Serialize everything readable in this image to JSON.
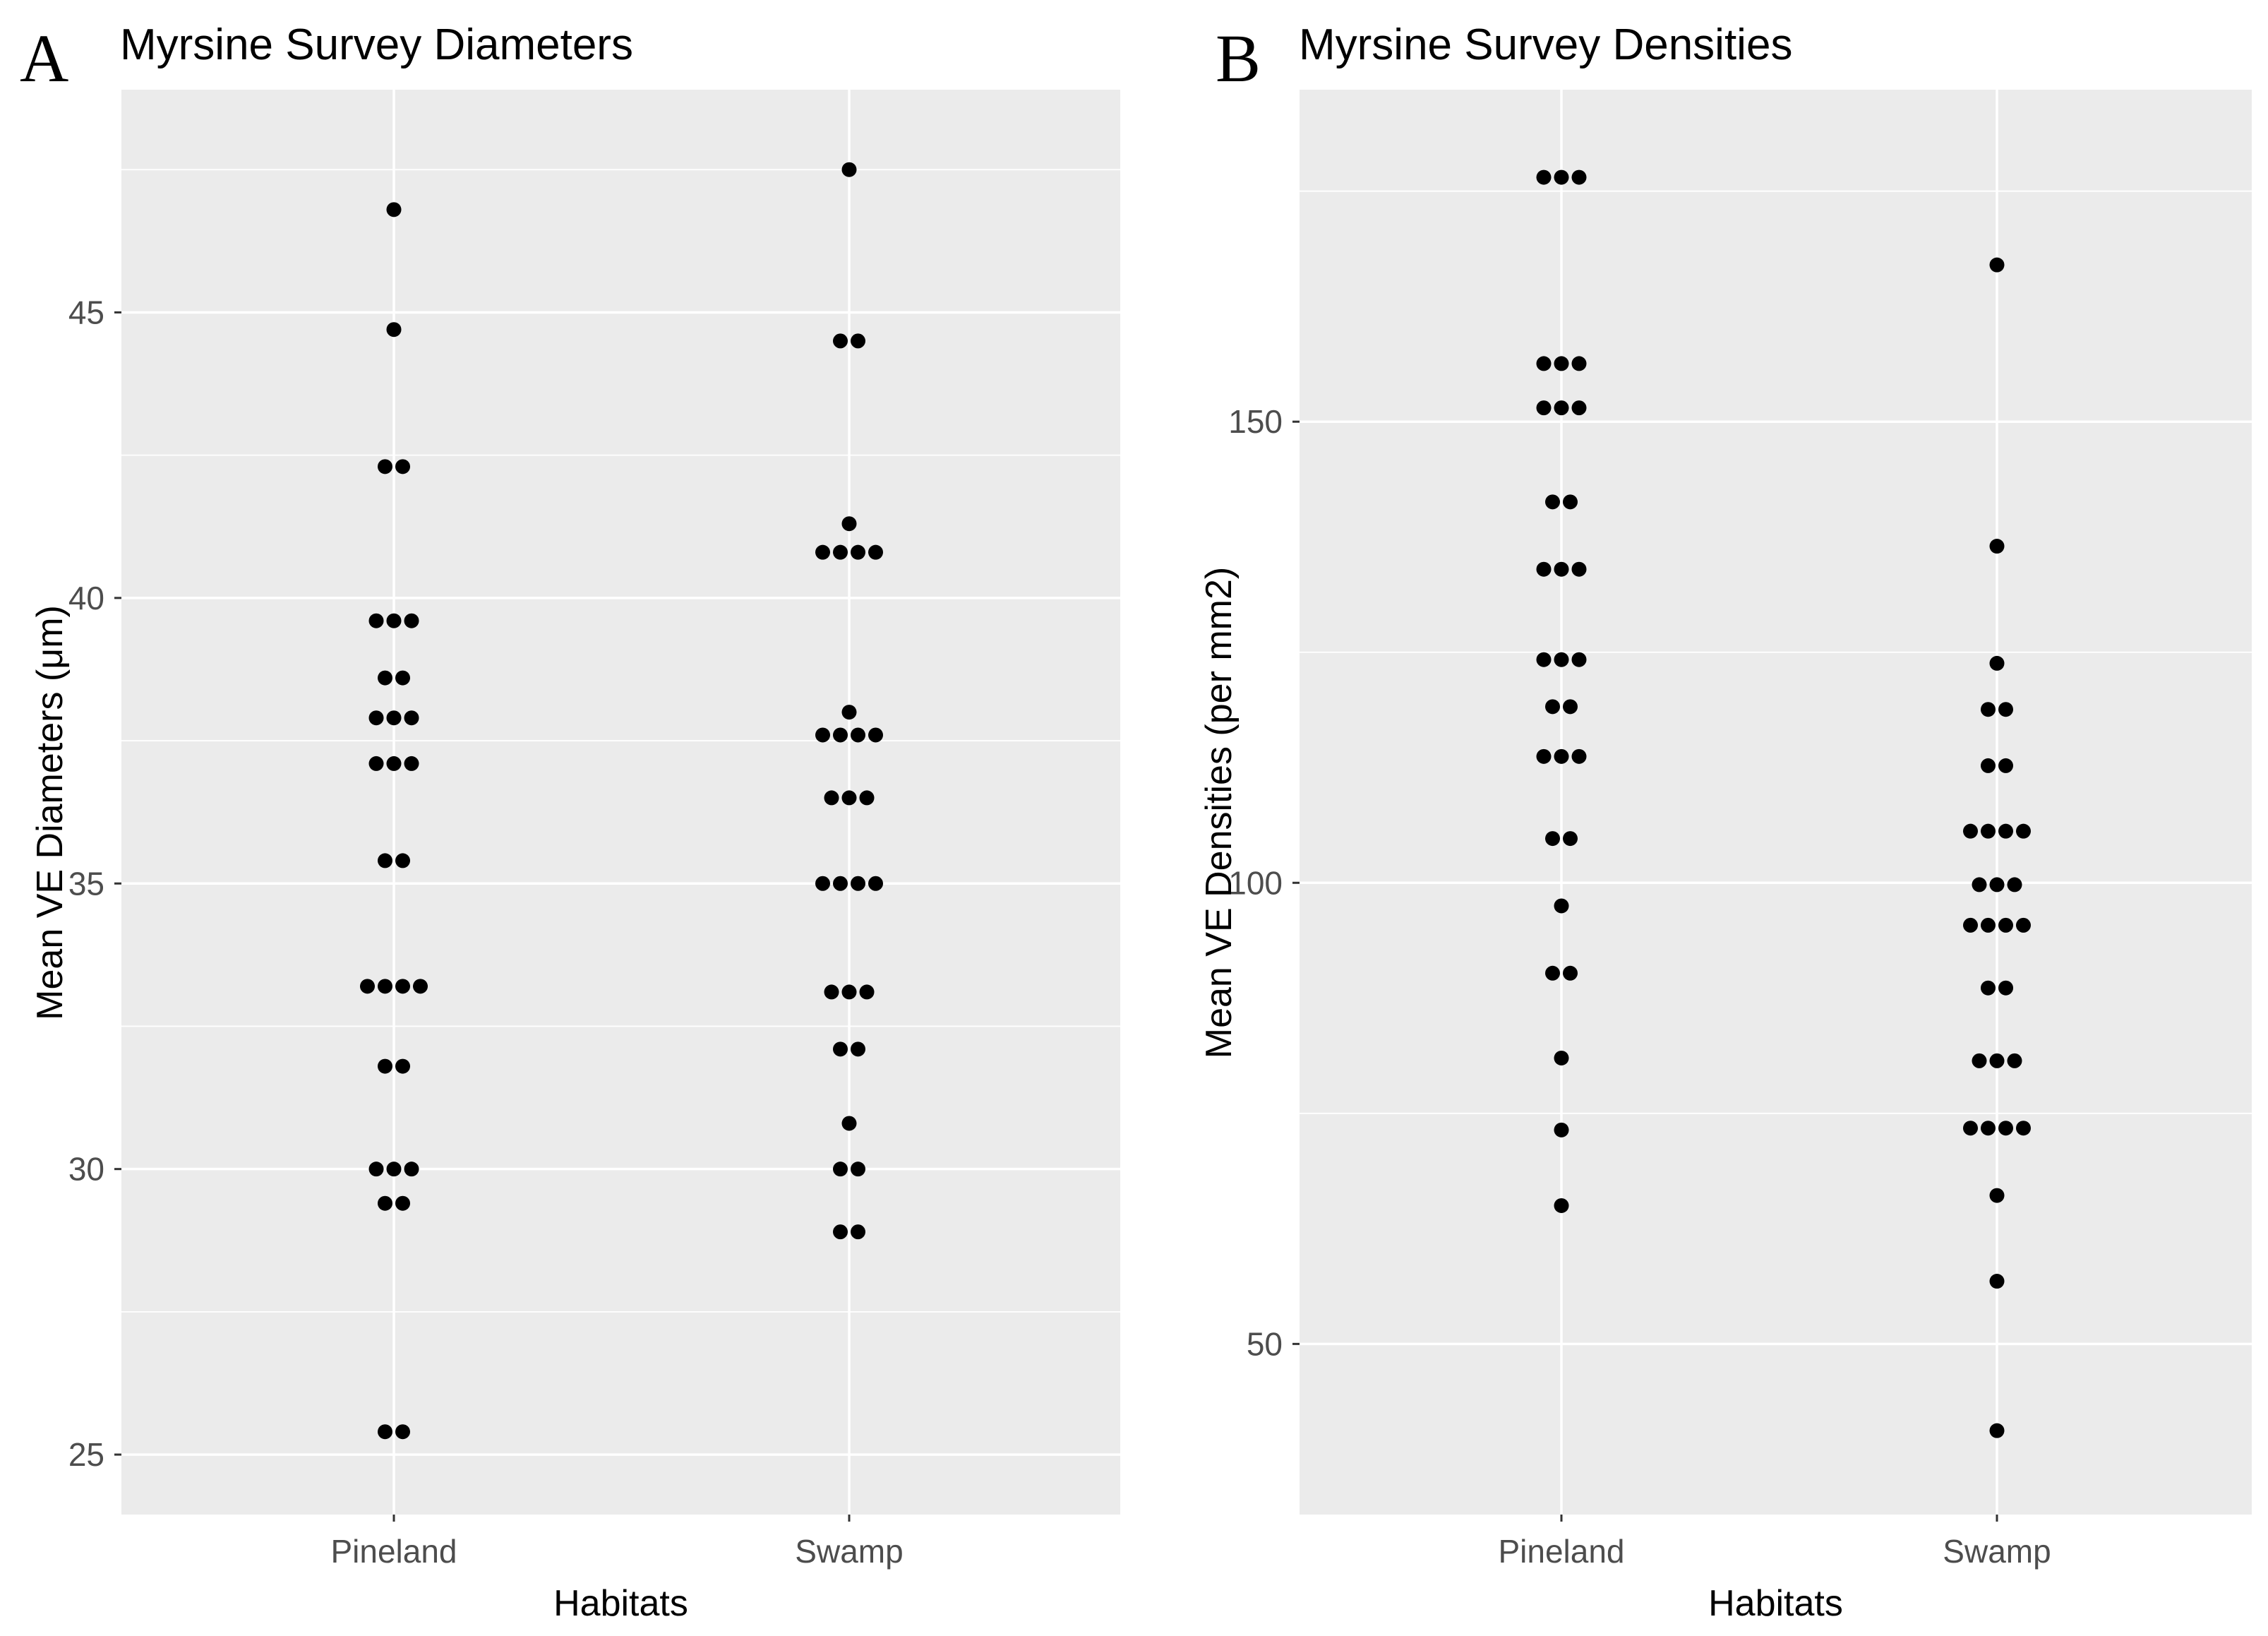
{
  "chart_data": [
    {
      "type": "scatter",
      "panel_label": "A",
      "title": "Myrsine Survey Diameters",
      "xlabel": "Habitats",
      "ylabel": "Mean VE Diameters (μm)",
      "categories": [
        "Pineland",
        "Swamp"
      ],
      "ylim": [
        23.95,
        48.9
      ],
      "yticks": [
        25,
        30,
        35,
        40,
        45
      ],
      "ytick_labels": [
        "25",
        "30",
        "35",
        "40",
        "45"
      ],
      "grid": true,
      "series": [
        {
          "name": "Pineland",
          "values": [
            46.8,
            44.7,
            42.3,
            42.3,
            39.6,
            39.6,
            39.6,
            38.6,
            38.6,
            37.9,
            37.9,
            37.9,
            37.1,
            37.1,
            37.1,
            35.4,
            35.4,
            33.2,
            33.2,
            33.2,
            33.2,
            31.8,
            31.8,
            30.0,
            30.0,
            30.0,
            29.4,
            29.4,
            25.4,
            25.4
          ]
        },
        {
          "name": "Swamp",
          "values": [
            47.5,
            44.5,
            44.5,
            41.3,
            40.8,
            40.8,
            40.8,
            40.8,
            38.0,
            37.6,
            37.6,
            37.6,
            37.6,
            36.5,
            36.5,
            36.5,
            35.0,
            35.0,
            35.0,
            35.0,
            33.1,
            33.1,
            33.1,
            32.1,
            32.1,
            30.8,
            30.0,
            30.0,
            28.9,
            28.9
          ]
        }
      ]
    },
    {
      "type": "scatter",
      "panel_label": "B",
      "title": "Myrsine Survey Densities",
      "xlabel": "Habitats",
      "ylabel": "Mean VE Densities (per mm2)",
      "categories": [
        "Pineland",
        "Swamp"
      ],
      "ylim": [
        31.5,
        186
      ],
      "yticks": [
        50,
        100,
        150
      ],
      "ytick_labels": [
        "50",
        "100",
        "150"
      ],
      "grid": true,
      "series": [
        {
          "name": "Pineland",
          "values": [
            176.5,
            176.5,
            176.5,
            156.3,
            156.3,
            156.3,
            151.5,
            151.5,
            151.5,
            141.3,
            141.3,
            134.0,
            134.0,
            134.0,
            124.2,
            124.2,
            124.2,
            119.1,
            119.1,
            113.7,
            113.7,
            113.7,
            104.8,
            104.8,
            97.5,
            90.2,
            90.2,
            81.0,
            73.2,
            65.0
          ]
        },
        {
          "name": "Swamp",
          "values": [
            167.0,
            136.5,
            123.8,
            118.8,
            118.8,
            112.7,
            112.7,
            105.6,
            105.6,
            105.6,
            105.6,
            99.8,
            99.8,
            99.8,
            95.4,
            95.4,
            95.4,
            95.4,
            88.6,
            88.6,
            80.7,
            80.7,
            80.7,
            73.4,
            73.4,
            73.4,
            73.4,
            66.1,
            56.8,
            40.6
          ]
        }
      ]
    }
  ]
}
